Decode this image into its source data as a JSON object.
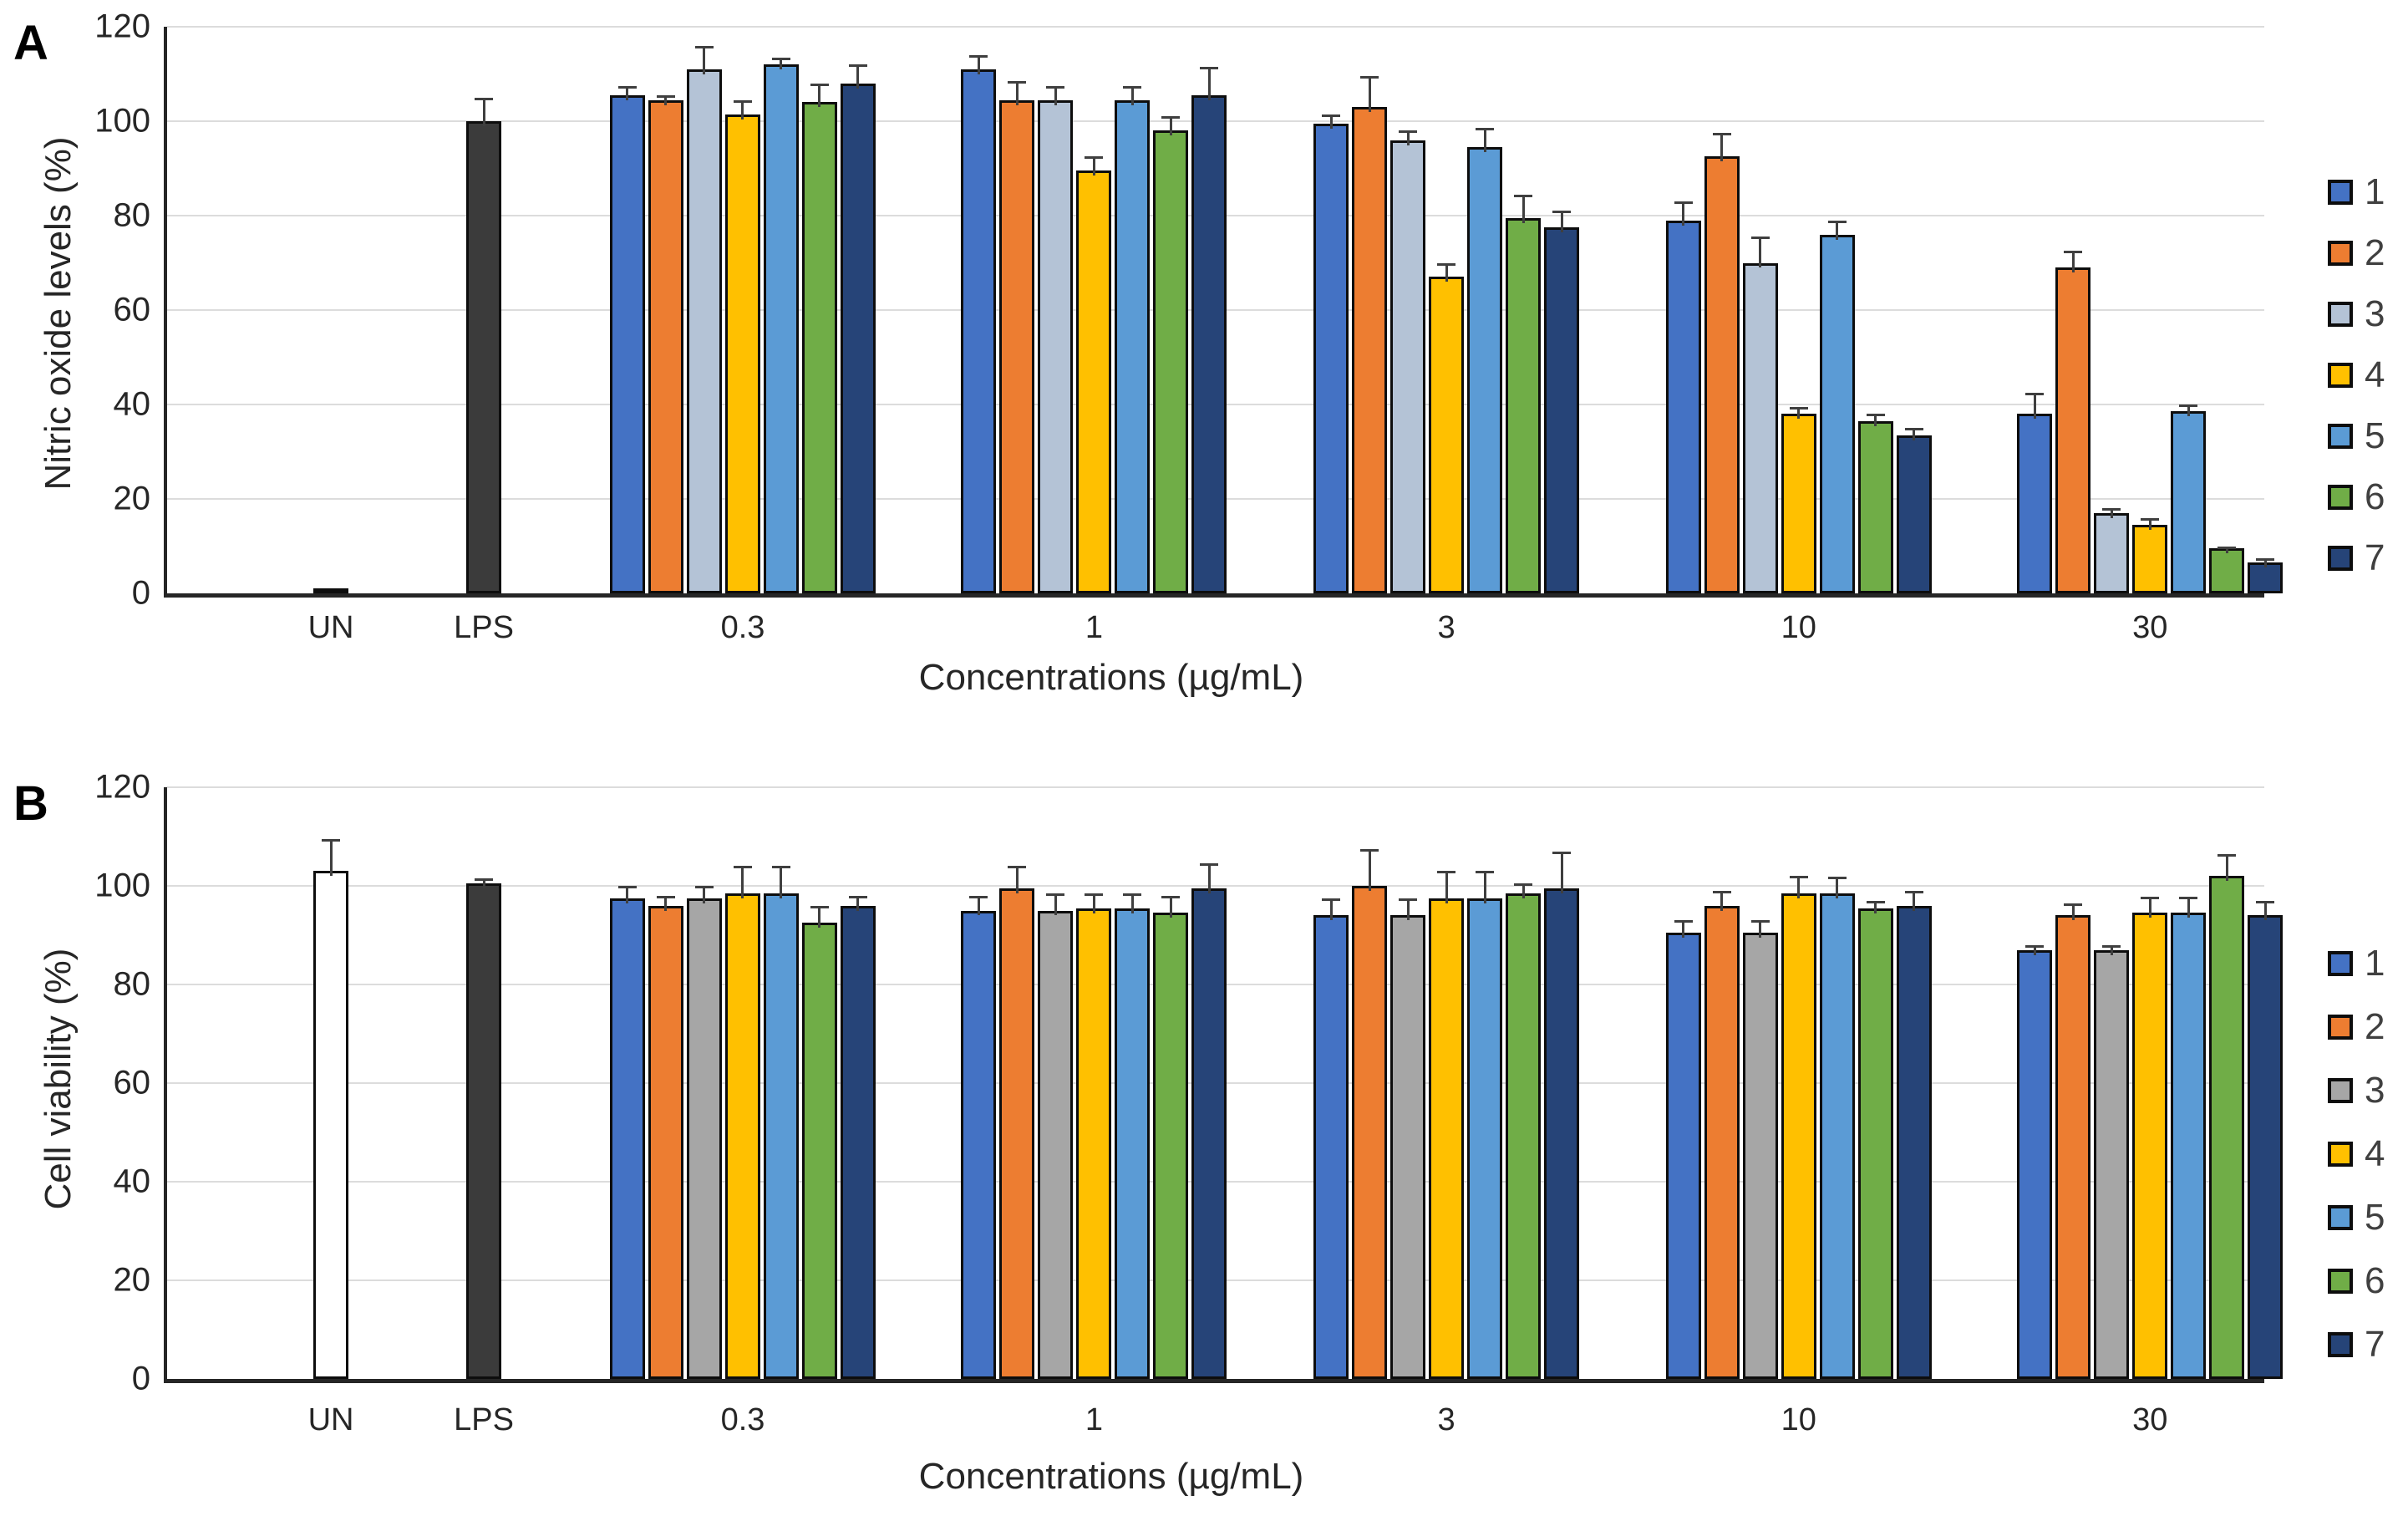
{
  "chart_data": [
    {
      "type": "bar",
      "panel_label": "A",
      "ylabel": "Nitric oxide levels (%)",
      "xlabel": "Concentrations (µg/mL)",
      "ylim": [
        0,
        120
      ],
      "yticks": [
        0,
        20,
        40,
        60,
        80,
        100,
        120
      ],
      "grid": true,
      "legend_position": "right",
      "categories": [
        "UN",
        "LPS",
        "0.3",
        "1",
        "3",
        "10",
        "30"
      ],
      "control_bars": [
        {
          "category": "UN",
          "value": 1,
          "error": 0,
          "color": "#3b3b3b"
        },
        {
          "category": "LPS",
          "value": 100,
          "error": 5,
          "color": "#3b3b3b"
        }
      ],
      "series_categories": [
        "0.3",
        "1",
        "3",
        "10",
        "30"
      ],
      "series": [
        {
          "name": "1",
          "color": "#4472c4",
          "values": [
            105.5,
            111,
            99.5,
            79,
            38
          ],
          "errors": [
            2,
            3,
            2,
            4,
            4.5
          ]
        },
        {
          "name": "2",
          "color": "#ed7d31",
          "values": [
            104.5,
            104.5,
            103,
            92.5,
            69
          ],
          "errors": [
            1,
            4,
            6.5,
            5,
            3.5
          ]
        },
        {
          "name": "3",
          "color": "#b4c3d6",
          "values": [
            111,
            104.5,
            96,
            70,
            17
          ],
          "errors": [
            5,
            3,
            2,
            5.5,
            1
          ]
        },
        {
          "name": "4",
          "color": "#ffc000",
          "values": [
            101.5,
            89.5,
            67,
            38,
            14.5
          ],
          "errors": [
            3,
            3,
            3,
            1.5,
            1.5
          ]
        },
        {
          "name": "5",
          "color": "#5b9bd5",
          "values": [
            112,
            104.5,
            94.5,
            76,
            38.5
          ],
          "errors": [
            1.5,
            3,
            4,
            3,
            1.5
          ]
        },
        {
          "name": "6",
          "color": "#70ad47",
          "values": [
            104,
            98,
            79.5,
            36.5,
            9.5
          ],
          "errors": [
            4,
            3,
            5,
            1.5,
            0.5
          ]
        },
        {
          "name": "7",
          "color": "#264478",
          "values": [
            108,
            105.5,
            77.5,
            33.5,
            6.5
          ],
          "errors": [
            4,
            6,
            3.5,
            1.5,
            1
          ]
        }
      ]
    },
    {
      "type": "bar",
      "panel_label": "B",
      "ylabel": "Cell viability (%)",
      "xlabel": "Concentrations (µg/mL)",
      "ylim": [
        0,
        120
      ],
      "yticks": [
        0,
        20,
        40,
        60,
        80,
        100,
        120
      ],
      "grid": true,
      "legend_position": "right",
      "categories": [
        "UN",
        "LPS",
        "0.3",
        "1",
        "3",
        "10",
        "30"
      ],
      "control_bars": [
        {
          "category": "UN",
          "value": 103,
          "error": 6.5,
          "color": "#ffffff"
        },
        {
          "category": "LPS",
          "value": 100.5,
          "error": 1,
          "color": "#3b3b3b"
        }
      ],
      "series_categories": [
        "0.3",
        "1",
        "3",
        "10",
        "30"
      ],
      "series": [
        {
          "name": "1",
          "color": "#4472c4",
          "values": [
            97.5,
            95,
            94,
            90.5,
            87
          ],
          "errors": [
            2.5,
            3,
            3.5,
            2.5,
            1
          ]
        },
        {
          "name": "2",
          "color": "#ed7d31",
          "values": [
            96,
            99.5,
            100,
            96,
            94
          ],
          "errors": [
            2,
            4.5,
            7.5,
            3,
            2.5
          ]
        },
        {
          "name": "3",
          "color": "#a6a6a6",
          "values": [
            97.5,
            95,
            94,
            90.5,
            87
          ],
          "errors": [
            2.5,
            3.5,
            3.5,
            2.5,
            1
          ]
        },
        {
          "name": "4",
          "color": "#ffc000",
          "values": [
            98.5,
            95.5,
            97.5,
            98.5,
            94.5
          ],
          "errors": [
            5.5,
            3,
            5.5,
            3.5,
            3.3
          ]
        },
        {
          "name": "5",
          "color": "#5b9bd5",
          "values": [
            98.5,
            95.5,
            97.5,
            98.5,
            94.5
          ],
          "errors": [
            5.5,
            3,
            5.5,
            3.3,
            3.3
          ]
        },
        {
          "name": "6",
          "color": "#70ad47",
          "values": [
            92.5,
            94.5,
            98.5,
            95.5,
            102
          ],
          "errors": [
            3.5,
            3.5,
            2,
            1.5,
            4.5
          ]
        },
        {
          "name": "7",
          "color": "#264478",
          "values": [
            96,
            99.5,
            99.5,
            96,
            94
          ],
          "errors": [
            2,
            5,
            7.5,
            3,
            3
          ]
        }
      ]
    }
  ],
  "style": {
    "grid_color": "#dcdcdc",
    "axis_color": "#262626",
    "bar_border_color": "#0d0d0d",
    "error_bar_color": "#3f3f3f"
  }
}
